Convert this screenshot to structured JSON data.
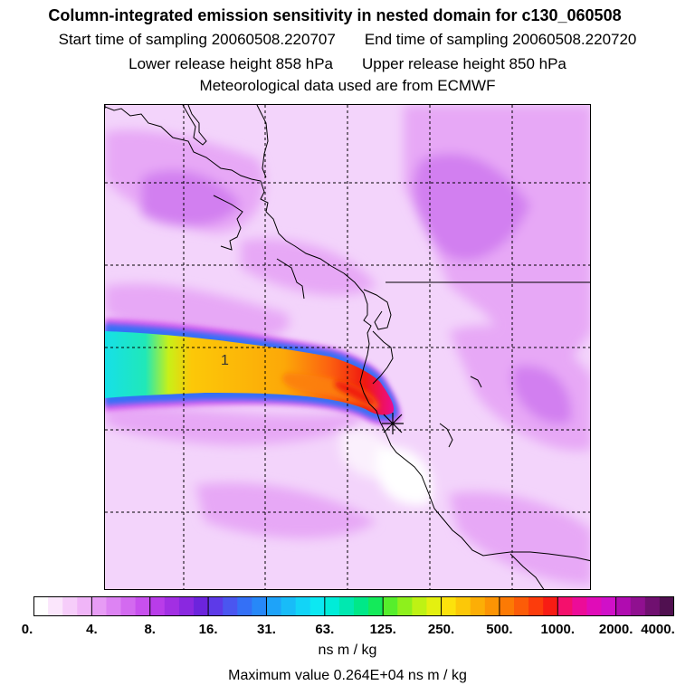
{
  "header": {
    "title": "Column-integrated emission sensitivity in nested domain for c130_060508",
    "start": "Start time of sampling 20060508.220707",
    "end": "End time of sampling 20060508.220720",
    "lower": "Lower release height  858 hPa",
    "upper": "Upper release height  850 hPa",
    "met": "Meteorological data used are from ECMWF"
  },
  "map": {
    "plume_label": "1",
    "colors": {
      "background_light": "#f3d4fb",
      "background_mid": "#e7a8f6",
      "background_dark": "#d27ff0",
      "coast": "#000000",
      "grid": "#000000"
    },
    "icons": [
      "release-site-marker-icon"
    ]
  },
  "colorbar": {
    "labels": [
      "0.",
      "4.",
      "8.",
      "16.",
      "31.",
      "63.",
      "125.",
      "250.",
      "500.",
      "1000.",
      "2000.",
      "4000."
    ],
    "colors": [
      "#ffffff",
      "#fbe6fc",
      "#f6cdfa",
      "#f0b5f8",
      "#e79cf5",
      "#dd83f3",
      "#d36af0",
      "#c850ee",
      "#b93ce9",
      "#a22fe3",
      "#8a28e0",
      "#6c24dc",
      "#5d3ae8",
      "#4a56f0",
      "#3470f6",
      "#2788f8",
      "#1ea3f9",
      "#18bcf8",
      "#12d4f7",
      "#0ce8f2",
      "#00ecd8",
      "#00e8b0",
      "#00e888",
      "#14ea5a",
      "#56ee2c",
      "#8ef01c",
      "#bef214",
      "#e4f010",
      "#fce20c",
      "#fcc808",
      "#fcae06",
      "#fc9404",
      "#fc7a04",
      "#fc5c08",
      "#fc3c0c",
      "#f81c14",
      "#f4106c",
      "#ec0c98",
      "#e00cb8",
      "#d010c8",
      "#b00cb0",
      "#901090",
      "#701070",
      "#501050"
    ],
    "units": "ns m / kg",
    "max_value": "Maximum value  0.264E+04 ns m / kg"
  }
}
